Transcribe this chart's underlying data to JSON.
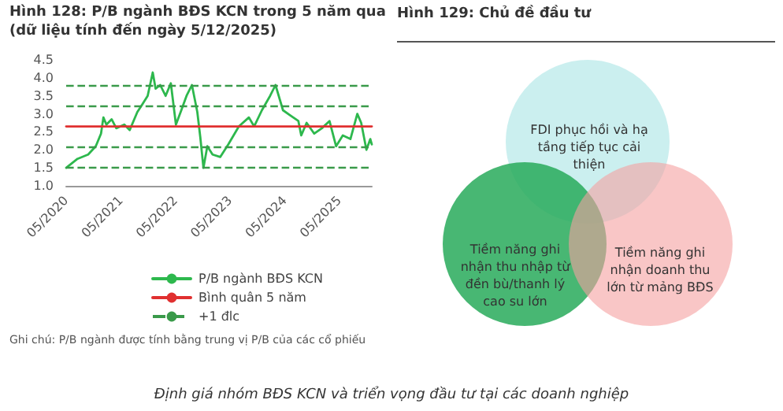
{
  "chart_data": [
    {
      "type": "line",
      "title": "Hình 128: P/B ngành BĐS KCN trong 5 năm qua (dữ liệu tính đến ngày 5/12/2025)",
      "xlim": [
        "2020-05-01",
        "2025-12-05"
      ],
      "xticks": [
        {
          "value": "2020-05-01",
          "label": "05/2020"
        },
        {
          "value": "2021-05-01",
          "label": "05/2021"
        },
        {
          "value": "2022-05-01",
          "label": "05/2022"
        },
        {
          "value": "2023-05-01",
          "label": "05/2023"
        },
        {
          "value": "2024-05-01",
          "label": "05/2024"
        },
        {
          "value": "2025-05-01",
          "label": "05/2025"
        }
      ],
      "ylim": [
        1.0,
        4.5
      ],
      "yticks": [
        {
          "value": 1,
          "label": "1.0"
        },
        1.5,
        {
          "value": 2,
          "label": "2.0"
        },
        2.5,
        {
          "value": 3,
          "label": "3.0"
        },
        3.5,
        {
          "value": 4,
          "label": "4.0"
        },
        4.5
      ],
      "ref_lines": [
        {
          "axis": "y",
          "value": 3.8,
          "label": "+1 đlc",
          "color": "#3a9a4a",
          "line_style": "dashed"
        },
        {
          "axis": "y",
          "value": 3.2,
          "label": null,
          "color": "#3a9a4a",
          "line_style": "dashed"
        },
        {
          "axis": "y",
          "value": 2.1,
          "label": null,
          "color": "#3a9a4a",
          "line_style": "dashed"
        },
        {
          "axis": "y",
          "value": 1.5,
          "label": null,
          "color": "#3a9a4a",
          "line_style": "dashed"
        }
      ],
      "grid": false,
      "legend": "bottom",
      "marker": "none",
      "series": [
        {
          "name": "P/B ngành BĐS KCN",
          "color": "#2db84d",
          "line_style": "solid",
          "x": [
            "2020-05-01",
            "2020-07-16",
            "2020-09-25",
            "2020-11-15",
            "2020-12-20",
            "2021-01-05",
            "2021-01-25",
            "2021-03-01",
            "2021-04-01",
            "2021-05-25",
            "2021-06-30",
            "2021-08-20",
            "2021-09-20",
            "2021-10-28",
            "2021-12-01",
            "2021-12-20",
            "2022-01-20",
            "2022-02-25",
            "2022-04-01",
            "2022-05-05",
            "2022-06-10",
            "2022-07-15",
            "2022-08-20",
            "2022-09-25",
            "2022-10-15",
            "2022-11-05",
            "2022-12-01",
            "2023-01-05",
            "2023-02-25",
            "2023-04-20",
            "2023-06-30",
            "2023-09-05",
            "2023-10-10",
            "2023-12-01",
            "2024-01-25",
            "2024-03-01",
            "2024-04-20",
            "2024-06-10",
            "2024-08-01",
            "2024-08-20",
            "2024-09-25",
            "2024-11-15",
            "2025-01-05",
            "2025-02-25",
            "2025-04-10",
            "2025-05-25",
            "2025-07-15",
            "2025-08-30",
            "2025-09-25",
            "2025-10-30",
            "2025-11-25",
            "2025-12-05"
          ],
          "values": [
            1.5,
            1.75,
            1.87,
            2.1,
            2.45,
            2.9,
            2.7,
            2.85,
            2.6,
            2.7,
            2.55,
            3.05,
            3.25,
            3.5,
            4.15,
            3.7,
            3.8,
            3.5,
            3.85,
            2.7,
            3.1,
            3.5,
            3.8,
            3.05,
            2.35,
            1.5,
            2.1,
            1.87,
            1.8,
            2.15,
            2.65,
            2.9,
            2.65,
            3.1,
            3.5,
            3.8,
            3.1,
            2.95,
            2.8,
            2.4,
            2.75,
            2.45,
            2.6,
            2.8,
            2.1,
            2.4,
            2.3,
            3.0,
            2.75,
            2.0,
            2.3,
            2.15
          ]
        },
        {
          "name": "Bình quân 5 năm",
          "color": "#e03030",
          "line_style": "solid",
          "x": [
            "2020-05-01",
            "2025-12-05"
          ],
          "values": [
            2.65,
            2.65
          ]
        }
      ],
      "annotations": [
        "Ghi chú: P/B ngành được tính bằng trung vị P/B của các cổ phiếu",
        "Định giá nhóm BĐS KCN và triển vọng đầu tư tại các doanh nghiệp"
      ]
    },
    {
      "type": "other",
      "title": "Hình 129: Chủ đề đầu tư",
      "annotations": [
        "FDI phục hồi và hạ tầng tiếp tục cải thiện",
        "Tiềm năng ghi nhận thu nhập từ đền bù/thanh lý cao su lớn",
        "Tiềm năng ghi nhận doanh thu lớn từ mảng BĐS"
      ]
    }
  ]
}
